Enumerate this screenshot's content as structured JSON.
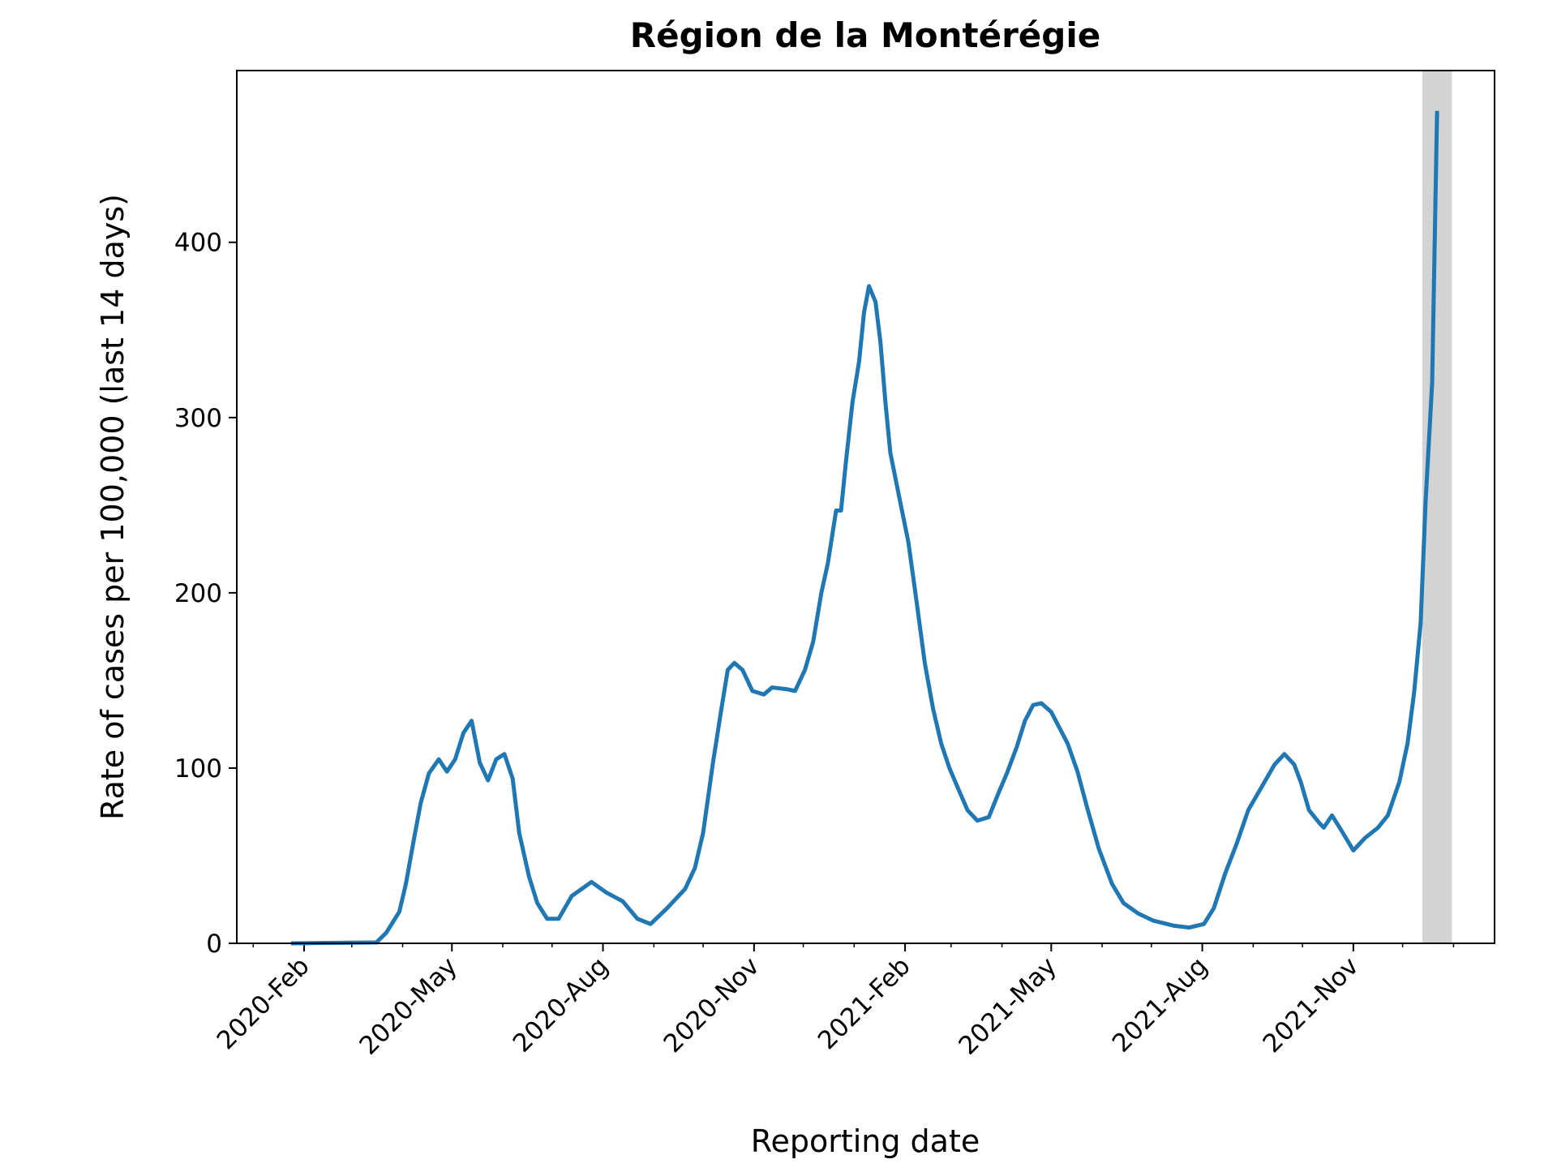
{
  "chart_data": {
    "type": "line",
    "title": "Région de la Montérégie",
    "xlabel": "Reporting date",
    "ylabel": "Rate of cases per 100,000 (last 14 days)",
    "color": "#1f77b4",
    "x": [
      "2020-01-24",
      "2020-03-16",
      "2020-03-22",
      "2020-03-30",
      "2020-04-03",
      "2020-04-08",
      "2020-04-12",
      "2020-04-17",
      "2020-04-23",
      "2020-04-28",
      "2020-05-03",
      "2020-05-08",
      "2020-05-13",
      "2020-05-18",
      "2020-05-23",
      "2020-05-28",
      "2020-06-02",
      "2020-06-07",
      "2020-06-11",
      "2020-06-17",
      "2020-06-22",
      "2020-06-28",
      "2020-07-05",
      "2020-07-13",
      "2020-07-25",
      "2020-08-03",
      "2020-08-13",
      "2020-08-22",
      "2020-08-30",
      "2020-09-09",
      "2020-09-20",
      "2020-09-26",
      "2020-10-01",
      "2020-10-07",
      "2020-10-12",
      "2020-10-16",
      "2020-10-20",
      "2020-10-25",
      "2020-10-31",
      "2020-11-07",
      "2020-11-12",
      "2020-11-21",
      "2020-11-26",
      "2020-12-02",
      "2020-12-07",
      "2020-12-12",
      "2020-12-16",
      "2020-12-21",
      "2020-12-24",
      "2020-12-27",
      "2020-12-31",
      "2021-01-04",
      "2021-01-07",
      "2021-01-10",
      "2021-01-14",
      "2021-01-17",
      "2021-01-20",
      "2021-01-23",
      "2021-01-29",
      "2021-02-03",
      "2021-02-08",
      "2021-02-13",
      "2021-02-18",
      "2021-02-23",
      "2021-02-28",
      "2021-03-05",
      "2021-03-11",
      "2021-03-17",
      "2021-03-24",
      "2021-03-30",
      "2021-04-04",
      "2021-04-10",
      "2021-04-15",
      "2021-04-20",
      "2021-04-25",
      "2021-05-01",
      "2021-05-06",
      "2021-05-11",
      "2021-05-17",
      "2021-05-23",
      "2021-05-30",
      "2021-06-07",
      "2021-06-14",
      "2021-06-23",
      "2021-07-02",
      "2021-07-15",
      "2021-07-24",
      "2021-08-02",
      "2021-08-08",
      "2021-08-15",
      "2021-08-22",
      "2021-08-29",
      "2021-09-06",
      "2021-09-14",
      "2021-09-20",
      "2021-09-26",
      "2021-09-30",
      "2021-10-05",
      "2021-10-11",
      "2021-10-14",
      "2021-10-19",
      "2021-10-25",
      "2021-11-01",
      "2021-11-08",
      "2021-11-16",
      "2021-11-22",
      "2021-11-29",
      "2021-12-04",
      "2021-12-08",
      "2021-12-12",
      "2021-12-15",
      "2021-12-19",
      "2021-12-22"
    ],
    "values": [
      0,
      0.5,
      6,
      18,
      34,
      60,
      80,
      97,
      105,
      98,
      105,
      120,
      127,
      103,
      93,
      105,
      108,
      94,
      63,
      38,
      23,
      14,
      14,
      27,
      35,
      29,
      24,
      14,
      11,
      20,
      31,
      43,
      63,
      103,
      133,
      156,
      160,
      156,
      144,
      142,
      146,
      145,
      144,
      156,
      172,
      200,
      217,
      247,
      247,
      275,
      309,
      332,
      360,
      375,
      366,
      343,
      309,
      280,
      252,
      229,
      195,
      160,
      134,
      114,
      100,
      89,
      76,
      70,
      72,
      86,
      97,
      112,
      127,
      136,
      137,
      132,
      123,
      114,
      98,
      77,
      54,
      34,
      23,
      17,
      13,
      10,
      9,
      11,
      20,
      40,
      57,
      76,
      89,
      102,
      108,
      102,
      92,
      76,
      69,
      66,
      73,
      64,
      53,
      60,
      66,
      73,
      92,
      114,
      143,
      183,
      252,
      320,
      475
    ],
    "xlim": [
      "2019-12-22",
      "2022-01-26"
    ],
    "xticks": [
      {
        "value": "2020-02-01",
        "label": "2020-Feb"
      },
      {
        "value": "2020-05-01",
        "label": "2020-May"
      },
      {
        "value": "2020-08-01",
        "label": "2020-Aug"
      },
      {
        "value": "2020-11-01",
        "label": "2020-Nov"
      },
      {
        "value": "2021-02-01",
        "label": "2021-Feb"
      },
      {
        "value": "2021-05-01",
        "label": "2021-May"
      },
      {
        "value": "2021-08-01",
        "label": "2021-Aug"
      },
      {
        "value": "2021-11-01",
        "label": "2021-Nov"
      }
    ],
    "xminorticks": [
      "2020-01-01",
      "2020-03-01",
      "2020-04-01",
      "2020-06-01",
      "2020-07-01",
      "2020-09-01",
      "2020-10-01",
      "2020-12-01",
      "2021-01-01",
      "2021-03-01",
      "2021-04-01",
      "2021-06-01",
      "2021-07-01",
      "2021-09-01",
      "2021-10-01",
      "2021-12-01",
      "2022-01-01"
    ],
    "ylim": [
      0,
      498
    ],
    "yticks": [
      0,
      100,
      200,
      300,
      400
    ],
    "shaded_region": {
      "x": [
        "2021-12-13",
        "2021-12-31"
      ],
      "color": "#d3d3d3"
    },
    "grid": false
  }
}
